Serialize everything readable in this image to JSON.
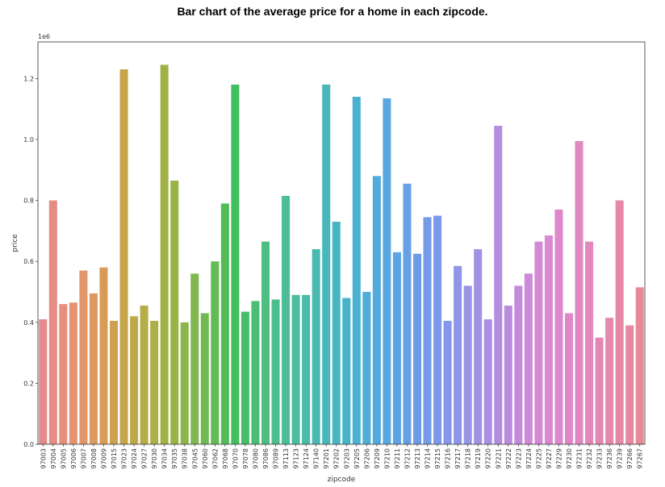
{
  "chart_data": {
    "type": "bar",
    "title": "Bar chart of the average price for a home in each zipcode.",
    "xlabel": "zipcode",
    "ylabel": "price",
    "scale_label": "1e6",
    "ylim": [
      0,
      1.32
    ],
    "yticks": [
      "0.0",
      "0.2",
      "0.4",
      "0.6",
      "0.8",
      "1.0",
      "1.2"
    ],
    "categories": [
      "97003",
      "97004",
      "97005",
      "97006",
      "97007",
      "97008",
      "97009",
      "97015",
      "97023",
      "97024",
      "97027",
      "97030",
      "97034",
      "97035",
      "97038",
      "97045",
      "97060",
      "97062",
      "97068",
      "97070",
      "97078",
      "97080",
      "97086",
      "97089",
      "97113",
      "97123",
      "97124",
      "97140",
      "97201",
      "97202",
      "97203",
      "97205",
      "97206",
      "97209",
      "97210",
      "97211",
      "97212",
      "97213",
      "97214",
      "97215",
      "97216",
      "97217",
      "97218",
      "97219",
      "97220",
      "97221",
      "97222",
      "97223",
      "97224",
      "97225",
      "97227",
      "97229",
      "97230",
      "97231",
      "97232",
      "97233",
      "97236",
      "97239",
      "97266",
      "97267"
    ],
    "values": [
      0.41,
      0.8,
      0.46,
      0.465,
      0.57,
      0.495,
      0.58,
      0.405,
      1.23,
      0.42,
      0.455,
      0.405,
      1.245,
      0.865,
      0.4,
      0.56,
      0.43,
      0.6,
      0.79,
      1.18,
      0.435,
      0.47,
      0.665,
      0.475,
      0.815,
      0.49,
      0.49,
      0.64,
      1.18,
      0.73,
      0.48,
      1.14,
      0.5,
      0.88,
      1.135,
      0.63,
      0.855,
      0.625,
      0.745,
      0.75,
      0.405,
      0.585,
      0.52,
      0.64,
      0.41,
      1.045,
      0.455,
      0.52,
      0.56,
      0.665,
      0.685,
      0.77,
      0.43,
      0.995,
      0.665,
      0.35,
      0.415,
      0.8,
      0.39,
      0.515
    ],
    "colors": [
      "#e48a8a",
      "#e58c83",
      "#e6907c",
      "#e79373",
      "#e3966a",
      "#de9960",
      "#d89c57",
      "#cfa050",
      "#c6a44a",
      "#bea94a",
      "#b6ac48",
      "#adb048",
      "#a2b147",
      "#98b346",
      "#8cb54a",
      "#80b74e",
      "#71b952",
      "#62bb55",
      "#52bd58",
      "#41be5d",
      "#45be6a",
      "#4abe75",
      "#4cbe81",
      "#4cbd8c",
      "#4cbd96",
      "#4bbca0",
      "#4bbaa9",
      "#4ab9b2",
      "#49b7ba",
      "#48b5c2",
      "#49b3c9",
      "#4ab1d0",
      "#4daed6",
      "#52abdb",
      "#58a7e0",
      "#5ea3e3",
      "#66a0e5",
      "#6d9ce7",
      "#759ae8",
      "#7d98e8",
      "#8696e8",
      "#8f95e8",
      "#9894e6",
      "#a292e4",
      "#ab8fe2",
      "#b38de0",
      "#bb8cde",
      "#c58bdb",
      "#cc8ad8",
      "#d389d4",
      "#d889d0",
      "#dc88cb",
      "#df88c7",
      "#e088c1",
      "#e288bb",
      "#e388b5",
      "#e488ae",
      "#e589a7",
      "#e689a0",
      "#e68a98"
    ]
  }
}
